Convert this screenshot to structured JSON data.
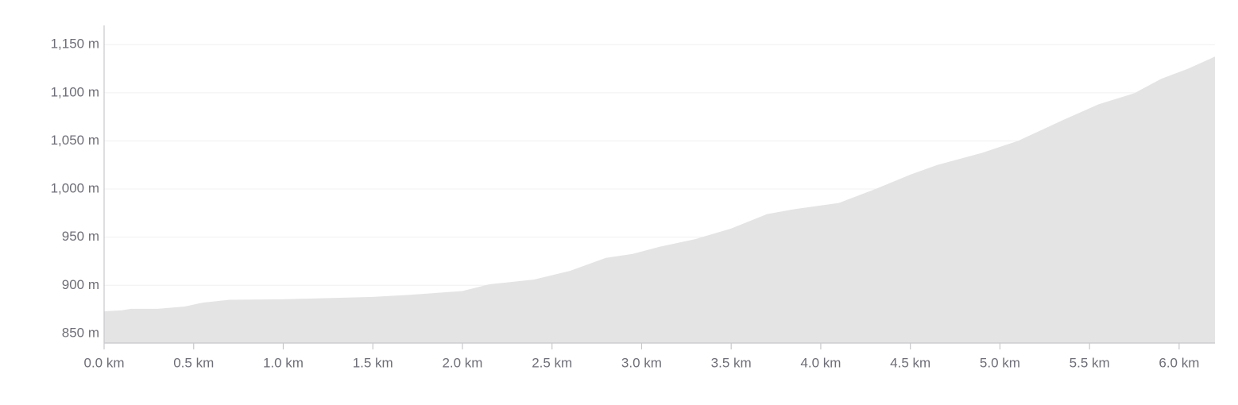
{
  "chart_data": {
    "type": "area",
    "x": [
      0,
      0.1,
      0.15,
      0.3,
      0.45,
      0.55,
      0.7,
      1.0,
      1.5,
      1.7,
      2.0,
      2.15,
      2.4,
      2.6,
      2.8,
      2.95,
      3.1,
      3.3,
      3.5,
      3.7,
      3.85,
      4.1,
      4.3,
      4.5,
      4.65,
      4.9,
      5.1,
      5.35,
      5.55,
      5.75,
      5.9,
      6.05,
      6.2
    ],
    "values": [
      873,
      874,
      875.6,
      875.6,
      878,
      882,
      885,
      885.5,
      888,
      890,
      894,
      901,
      906,
      915,
      928.5,
      932.6,
      940,
      948,
      959,
      974,
      979,
      985.5,
      999.6,
      1015,
      1025,
      1037.6,
      1050,
      1071.5,
      1088,
      1099.6,
      1114.5,
      1125,
      1137.6
    ],
    "color": "#e4e4e4",
    "xlim": [
      0,
      6.2
    ],
    "ylim": [
      840,
      1170
    ],
    "xticks": [
      {
        "value": 0,
        "label": "0.0 km"
      },
      {
        "value": 0.5,
        "label": "0.5 km"
      },
      {
        "value": 1,
        "label": "1.0 km"
      },
      {
        "value": 1.5,
        "label": "1.5 km"
      },
      {
        "value": 2,
        "label": "2.0 km"
      },
      {
        "value": 2.5,
        "label": "2.5 km"
      },
      {
        "value": 3,
        "label": "3.0 km"
      },
      {
        "value": 3.5,
        "label": "3.5 km"
      },
      {
        "value": 4,
        "label": "4.0 km"
      },
      {
        "value": 4.5,
        "label": "4.5 km"
      },
      {
        "value": 5,
        "label": "5.0 km"
      },
      {
        "value": 5.5,
        "label": "5.5 km"
      },
      {
        "value": 6,
        "label": "6.0 km"
      }
    ],
    "yticks": [
      {
        "value": 850,
        "label": "850 m"
      },
      {
        "value": 900,
        "label": "900 m"
      },
      {
        "value": 950,
        "label": "950 m"
      },
      {
        "value": 1000,
        "label": "1,000 m"
      },
      {
        "value": 1050,
        "label": "1,050 m"
      },
      {
        "value": 1100,
        "label": "1,100 m"
      },
      {
        "value": 1150,
        "label": "1,150 m"
      }
    ],
    "grid": true
  }
}
